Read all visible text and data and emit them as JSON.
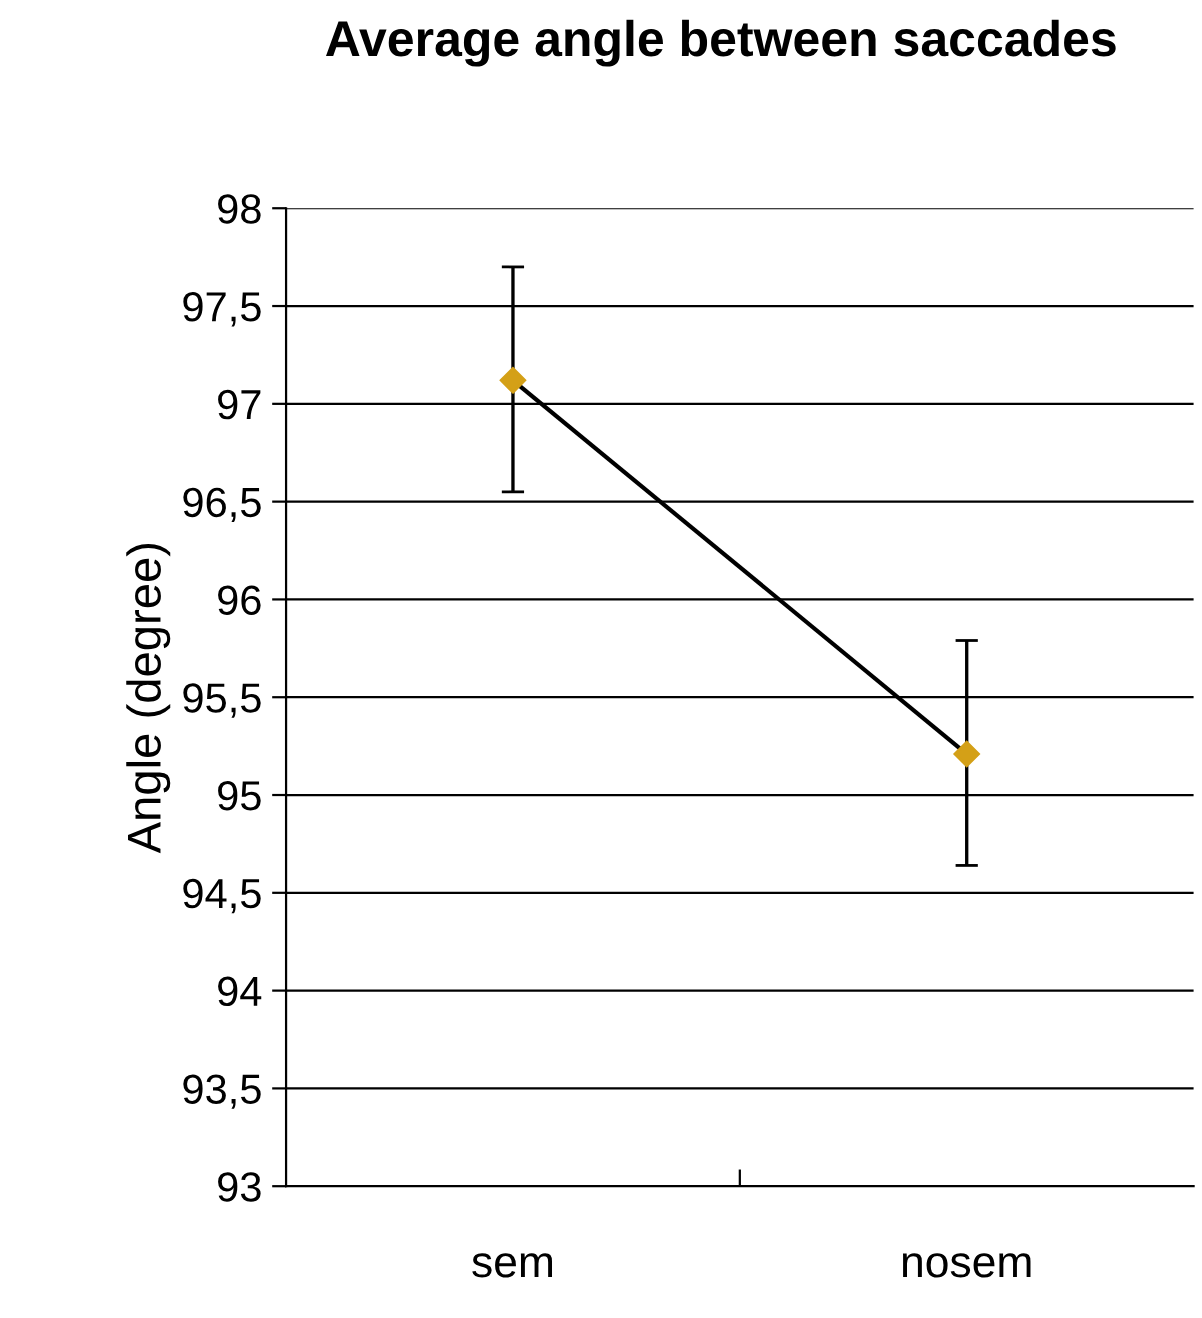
{
  "chart_data": {
    "type": "line",
    "title": "Average angle between saccades",
    "ylabel": "Angle (degree)",
    "categories": [
      "sem",
      "nosem"
    ],
    "series": [
      {
        "color": "#d4a017",
        "values": [
          97.12,
          95.21
        ],
        "errors": [
          [
            96.55,
            97.7
          ],
          [
            94.64,
            95.79
          ]
        ]
      }
    ],
    "ylim": [
      93,
      98
    ],
    "yticks": [
      93,
      {
        "value": 93.5,
        "label": "93,5"
      },
      94,
      {
        "value": 94.5,
        "label": "94,5"
      },
      95,
      {
        "value": 95.5,
        "label": "95,5"
      },
      96,
      {
        "value": 96.5,
        "label": "96,5"
      },
      97,
      {
        "value": 97.5,
        "label": "97,5"
      },
      98
    ],
    "grid": "y",
    "marker": "diamond",
    "line_style": "solid",
    "legend": false
  }
}
